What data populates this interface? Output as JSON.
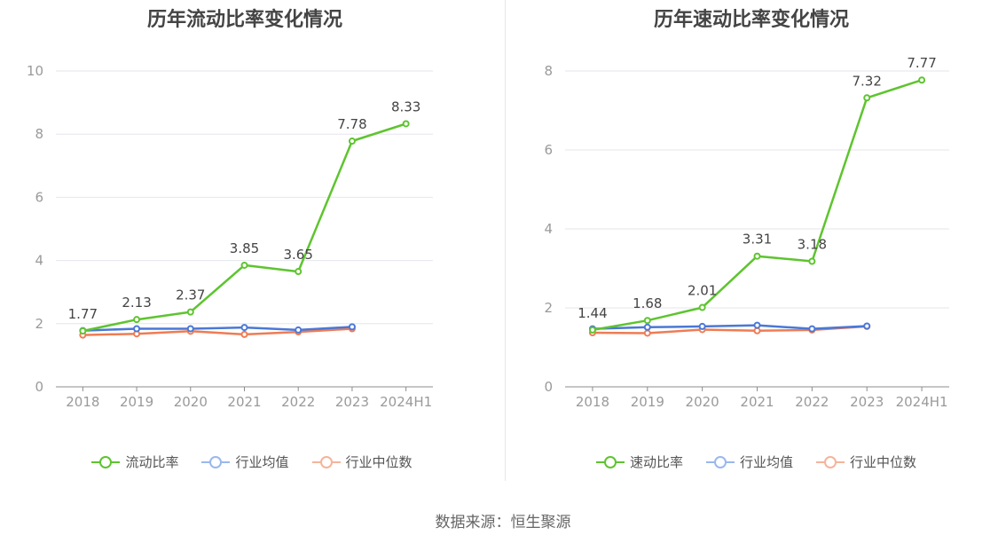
{
  "source": "数据来源：恒生聚源",
  "colors": {
    "main": "#5ec42f",
    "average": "#4a78d6",
    "median": "#ee7c55",
    "average_legend": "#9ab8ee",
    "median_legend": "#f5b49c",
    "grid": "#e6e6ee",
    "axis": "#8c8c8c"
  },
  "chart_data": [
    {
      "type": "line",
      "title": "历年流动比率变化情况",
      "categories": [
        "2018",
        "2019",
        "2020",
        "2021",
        "2022",
        "2023",
        "2024H1"
      ],
      "ylim": [
        0,
        10
      ],
      "yticks": [
        "0",
        "2",
        "4",
        "6",
        "8",
        "10"
      ],
      "grid": true,
      "legend_position": "bottom",
      "series": [
        {
          "name": "流动比率",
          "values": [
            1.77,
            2.13,
            2.37,
            3.85,
            3.65,
            7.78,
            8.33
          ],
          "labels": [
            "1.77",
            "2.13",
            "2.37",
            "3.85",
            "3.65",
            "7.78",
            "8.33"
          ]
        },
        {
          "name": "行业均值",
          "values": [
            1.78,
            1.84,
            1.84,
            1.88,
            1.8,
            1.9,
            null
          ]
        },
        {
          "name": "行业中位数",
          "values": [
            1.64,
            1.68,
            1.76,
            1.66,
            1.74,
            1.84,
            null
          ]
        }
      ]
    },
    {
      "type": "line",
      "title": "历年速动比率变化情况",
      "categories": [
        "2018",
        "2019",
        "2020",
        "2021",
        "2022",
        "2023",
        "2024H1"
      ],
      "ylim": [
        0,
        8
      ],
      "yticks": [
        "0",
        "2",
        "4",
        "6",
        "8"
      ],
      "grid": true,
      "legend_position": "bottom",
      "series": [
        {
          "name": "速动比率",
          "values": [
            1.44,
            1.68,
            2.01,
            3.31,
            3.18,
            7.32,
            7.77
          ],
          "labels": [
            "1.44",
            "1.68",
            "2.01",
            "3.31",
            "3.18",
            "7.32",
            "7.77"
          ]
        },
        {
          "name": "行业均值",
          "values": [
            1.47,
            1.51,
            1.53,
            1.56,
            1.47,
            1.54,
            null
          ]
        },
        {
          "name": "行业中位数",
          "values": [
            1.37,
            1.36,
            1.45,
            1.42,
            1.44,
            1.53,
            null
          ]
        }
      ]
    }
  ]
}
